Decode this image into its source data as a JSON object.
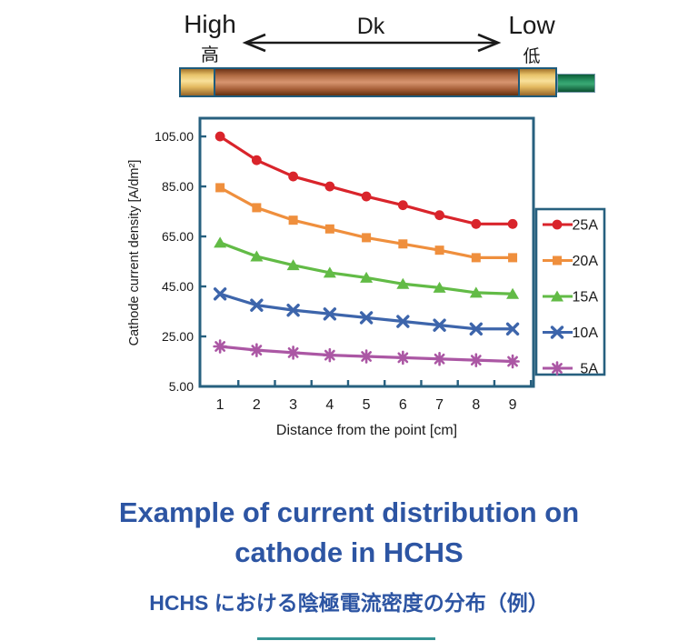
{
  "top_diagram": {
    "high_label": "High",
    "high_cjk": "高",
    "dk_label": "Dk",
    "low_label": "Low",
    "low_cjk": "低"
  },
  "chart_data": {
    "type": "line",
    "title": "",
    "xlabel": "Distance from the point [cm]",
    "ylabel": "Cathode current density [A/dm²]",
    "x": [
      1,
      2,
      3,
      4,
      5,
      6,
      7,
      8,
      9
    ],
    "series": [
      {
        "name": "25A",
        "color": "#d9242b",
        "marker": "circle",
        "values": [
          105,
          95.5,
          89,
          85,
          81,
          77.5,
          73.5,
          70,
          70
        ]
      },
      {
        "name": "20A",
        "color": "#ef8f3d",
        "marker": "square",
        "values": [
          84.5,
          76.5,
          71.5,
          68,
          64.5,
          62,
          59.5,
          56.5,
          56.5
        ]
      },
      {
        "name": "15A",
        "color": "#62bb46",
        "marker": "triangle",
        "values": [
          62.5,
          57,
          53.5,
          50.5,
          48.5,
          46,
          44.5,
          42.5,
          42
        ]
      },
      {
        "name": "10A",
        "color": "#3d65ab",
        "marker": "x",
        "values": [
          42,
          37.5,
          35.5,
          34,
          32.5,
          31,
          29.5,
          28,
          28
        ]
      },
      {
        "name": "5A",
        "color": "#ab57a4",
        "marker": "asterisk",
        "values": [
          21,
          19.5,
          18.5,
          17.5,
          17,
          16.5,
          16,
          15.5,
          15
        ]
      }
    ],
    "yticks": [
      105,
      85,
      65,
      45,
      25,
      5
    ],
    "ytick_labels": [
      "105.00",
      "85.00",
      "65.00",
      "45.00",
      "25.00",
      "5.00"
    ],
    "xtick_labels": [
      "1",
      "2",
      "3",
      "4",
      "5",
      "6",
      "7",
      "8",
      "9"
    ],
    "ylim": [
      5,
      112.3
    ],
    "xlim": [
      0.45,
      9.57
    ],
    "grid": false,
    "legend_position": "right",
    "axis_color": "#27607f"
  },
  "captions": {
    "title_line1": "Example of current distribution on",
    "title_line2": "cathode in HCHS",
    "subtitle": "HCHS における陰極電流密度の分布（例）"
  },
  "colors": {
    "axis": "#27607f",
    "title_blue": "#2d55a3",
    "rod_border": "#1e5b7c",
    "arrow_black": "#1a1a1a"
  }
}
